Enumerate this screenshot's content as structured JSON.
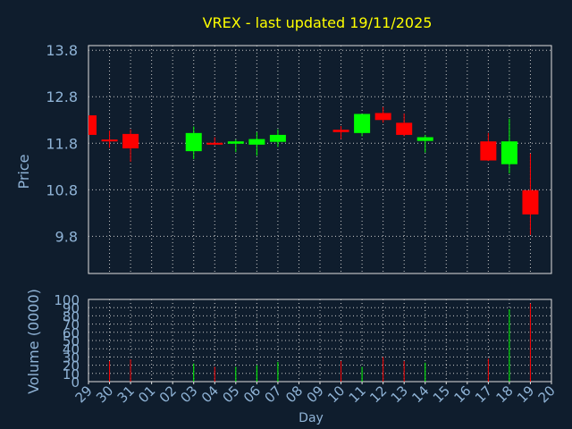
{
  "chart_data": {
    "type": "candlestick",
    "title": "VREX - last updated 19/11/2025",
    "xlabel": "Day",
    "ylabel_price": "Price",
    "ylabel_volume": "Volume (0000)",
    "x_tick_labels": [
      "29",
      "30",
      "31",
      "01",
      "02",
      "03",
      "04",
      "05",
      "06",
      "07",
      "08",
      "09",
      "10",
      "11",
      "12",
      "13",
      "14",
      "15",
      "16",
      "17",
      "18",
      "19",
      "20"
    ],
    "price_ticks": [
      "13.8",
      "12.8",
      "11.8",
      "10.8",
      "9.8"
    ],
    "volume_ticks": [
      "100",
      "90",
      "80",
      "70",
      "60",
      "50",
      "40",
      "30",
      "20",
      "10",
      "0"
    ],
    "price_range": [
      9.0,
      13.9
    ],
    "volume_range": [
      0,
      100
    ],
    "grid": true,
    "colors": {
      "up": "#00ff00",
      "down": "#ff0000",
      "background": "#0f1d2d",
      "text": "#8fb3d6",
      "title": "#ffff00",
      "grid": "#c8c8c8"
    },
    "candles": [
      {
        "day": "29",
        "open": 12.4,
        "high": 12.4,
        "low": 11.98,
        "close": 11.98,
        "volume": 0
      },
      {
        "day": "30",
        "open": 11.88,
        "high": 12.07,
        "low": 11.7,
        "close": 11.84,
        "volume": 25
      },
      {
        "day": "31",
        "open": 12.0,
        "high": 12.1,
        "low": 11.4,
        "close": 11.69,
        "volume": 27
      },
      {
        "day": "03",
        "open": 11.63,
        "high": 12.16,
        "low": 11.46,
        "close": 12.02,
        "volume": 22
      },
      {
        "day": "04",
        "open": 11.81,
        "high": 11.93,
        "low": 11.76,
        "close": 11.77,
        "volume": 18
      },
      {
        "day": "05",
        "open": 11.79,
        "high": 11.88,
        "low": 11.61,
        "close": 11.84,
        "volume": 18
      },
      {
        "day": "06",
        "open": 11.77,
        "high": 12.04,
        "low": 11.53,
        "close": 11.89,
        "volume": 20
      },
      {
        "day": "07",
        "open": 11.83,
        "high": 12.1,
        "low": 11.72,
        "close": 11.98,
        "volume": 24
      },
      {
        "day": "10",
        "open": 12.09,
        "high": 12.17,
        "low": 11.89,
        "close": 12.04,
        "volume": 25
      },
      {
        "day": "11",
        "open": 12.02,
        "high": 12.43,
        "low": 11.95,
        "close": 12.43,
        "volume": 18
      },
      {
        "day": "12",
        "open": 12.45,
        "high": 12.58,
        "low": 12.24,
        "close": 12.3,
        "volume": 30
      },
      {
        "day": "13",
        "open": 12.24,
        "high": 12.44,
        "low": 11.95,
        "close": 11.98,
        "volume": 25
      },
      {
        "day": "14",
        "open": 11.85,
        "high": 11.98,
        "low": 11.6,
        "close": 11.93,
        "volume": 23
      },
      {
        "day": "17",
        "open": 11.84,
        "high": 12.02,
        "low": 11.42,
        "close": 11.43,
        "volume": 28
      },
      {
        "day": "18",
        "open": 11.35,
        "high": 12.33,
        "low": 11.15,
        "close": 11.84,
        "volume": 88
      },
      {
        "day": "19",
        "open": 10.79,
        "high": 11.58,
        "low": 9.83,
        "close": 10.27,
        "volume": 95
      }
    ]
  }
}
